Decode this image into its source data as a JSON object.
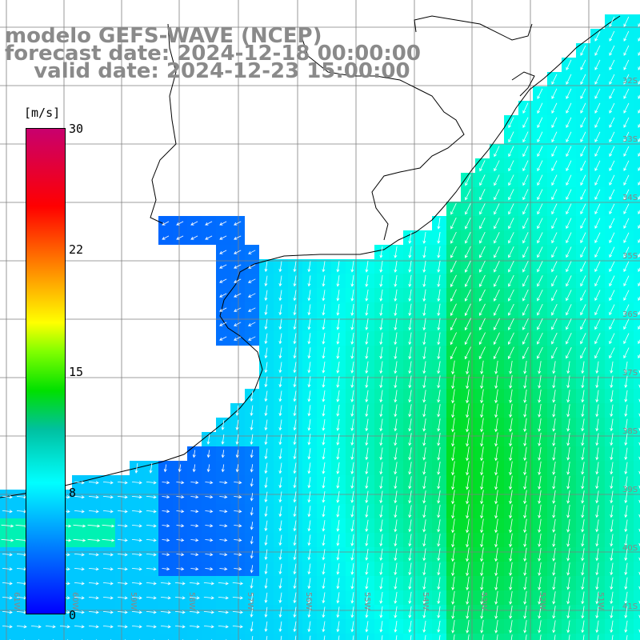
{
  "title": {
    "line1": "modelo GEFS-WAVE (NCEP)",
    "line2": "forecast date: 2024-12-18 00:00:00",
    "line3": "    valid date: 2024-12-23 15:00:00"
  },
  "colorbar": {
    "unit": "[m/s]",
    "ticks": [
      "30",
      "22",
      "15",
      "8",
      "0"
    ],
    "colors": [
      "#0000ff",
      "#0080ff",
      "#00ffff",
      "#00ff00",
      "#ffff00",
      "#ff8000",
      "#ff0000",
      "#c8006e"
    ]
  },
  "lat_labels": [
    "32S",
    "33S",
    "34S",
    "35S",
    "36S",
    "37S",
    "38S",
    "39S",
    "40S",
    "41S"
  ],
  "lon_labels": [
    "61W",
    "60W",
    "59W",
    "58W",
    "57W",
    "56W",
    "55W",
    "54W",
    "53W",
    "52W",
    "51W"
  ],
  "colors": {
    "land": "#ffffff",
    "coast": "#000000",
    "grid": "#7f7f7f",
    "vector": "#ffffff",
    "title_text": "#8a8a8a"
  }
}
